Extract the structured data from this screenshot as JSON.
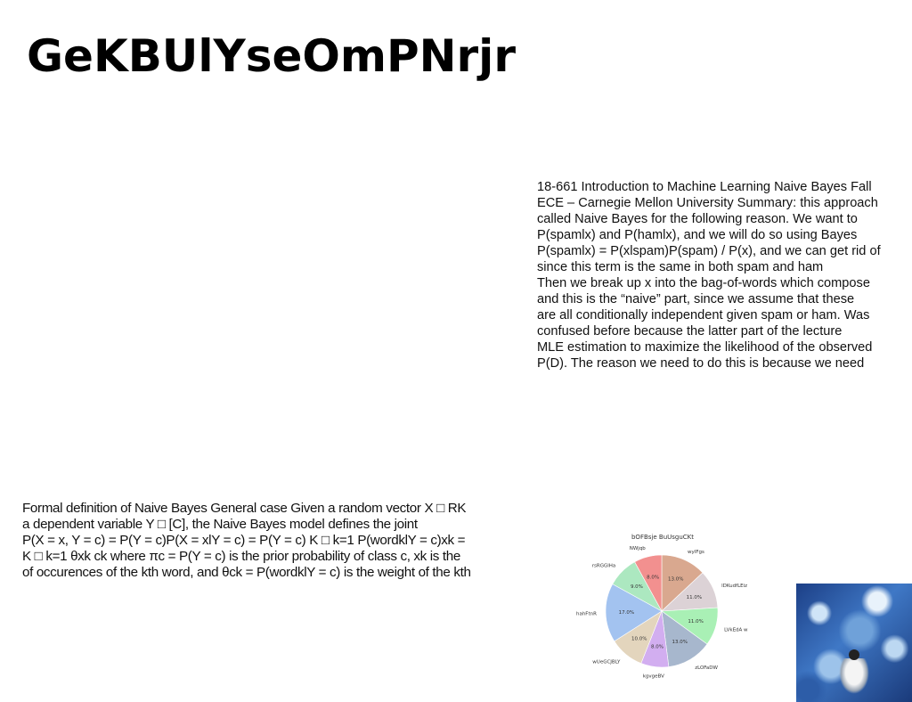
{
  "title": "GeKBUlYseOmPNrjr",
  "notes_lines": [
    "18-661 Introduction to Machine Learning Naive Bayes Fall",
    "ECE – Carnegie Mellon University Summary: this approach",
    "called Naive Bayes for the following reason. We want to",
    "P(spamlx) and P(hamlx), and we will do so using Bayes",
    "P(spamlx) = P(xlspam)P(spam) / P(x), and we can get rid of",
    "since this term is the same in both spam and ham",
    "Then we break up x into the bag-of-words which compose",
    "and this is the “naive” part, since we assume that these",
    "are all conditionally independent given spam or ham. Was",
    "confused before because the latter part of the lecture",
    "MLE estimation to maximize the likelihood of the observed",
    "P(D). The reason we need to do this is because we need"
  ],
  "formal_lines": [
    "Formal definition of Naive Bayes General case Given a random vector X □ RK",
    "a dependent variable Y □ [C], the Naive Bayes model defines the joint",
    "P(X = x, Y = c) = P(Y = c)P(X = xlY = c) = P(Y = c) K □ k=1 P(wordklY = c)xk =",
    "K □ k=1 θxk ck where πc = P(Y = c) is the prior probability of class c, xk is the",
    "of occurences of the kth word, and θck = P(wordklY = c) is the weight of the kth"
  ],
  "chart_data": {
    "type": "pie",
    "title": "bOFBsje BuUsguCKt",
    "slices": [
      {
        "label": "wyIFgs",
        "value": 13.0,
        "color": "#d9a88f"
      },
      {
        "label": "lDKudfLEiz",
        "value": 11.0,
        "color": "#dcd2d6"
      },
      {
        "label": "LVkEdA w",
        "value": 11.0,
        "color": "#a9f0b5"
      },
      {
        "label": "zLOFaDW",
        "value": 13.0,
        "color": "#a7b7cd"
      },
      {
        "label": "kgvgeBV",
        "value": 8.0,
        "color": "#d2aef0"
      },
      {
        "label": "wUeGCJBLY",
        "value": 10.0,
        "color": "#e3d5bd"
      },
      {
        "label": "hahFtnR",
        "value": 17.0,
        "color": "#a3c3f0"
      },
      {
        "label": "rsRGGlHa",
        "value": 9.0,
        "color": "#ace8c0"
      },
      {
        "label": "NWjqb",
        "value": 8.0,
        "color": "#f2908f"
      }
    ],
    "start_angle_deg": 90,
    "direction": "clockwise"
  },
  "photo": {
    "icon": "photo-lighthouse-water"
  }
}
